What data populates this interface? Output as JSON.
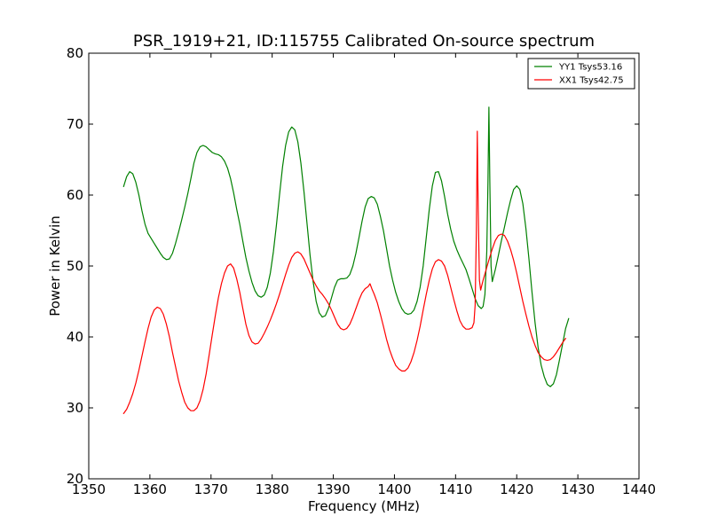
{
  "chart_data": {
    "type": "line",
    "title": "PSR_1919+21, ID:115755 Calibrated On-source spectrum",
    "xlabel": "Frequency (MHz)",
    "ylabel": "Power in Kelvin",
    "xlim": [
      1350,
      1440
    ],
    "ylim": [
      20,
      80
    ],
    "xticks": [
      1350,
      1360,
      1370,
      1380,
      1390,
      1400,
      1410,
      1420,
      1430,
      1440
    ],
    "yticks": [
      20,
      30,
      40,
      50,
      60,
      70,
      80
    ],
    "grid": false,
    "legend_position": "top-right",
    "series": [
      {
        "name": "YY1 Tsys53.16",
        "color": "#008000",
        "points": [
          [
            1355.7,
            61.2
          ],
          [
            1356.2,
            62.6
          ],
          [
            1356.7,
            63.3
          ],
          [
            1357.2,
            63.0
          ],
          [
            1357.7,
            61.8
          ],
          [
            1358.2,
            60.0
          ],
          [
            1358.7,
            57.8
          ],
          [
            1359.2,
            55.9
          ],
          [
            1359.7,
            54.6
          ],
          [
            1360.2,
            53.9
          ],
          [
            1360.7,
            53.2
          ],
          [
            1361.2,
            52.5
          ],
          [
            1361.7,
            51.8
          ],
          [
            1362.2,
            51.2
          ],
          [
            1362.7,
            50.9
          ],
          [
            1363.2,
            51.0
          ],
          [
            1363.7,
            51.8
          ],
          [
            1364.2,
            53.2
          ],
          [
            1364.7,
            54.8
          ],
          [
            1365.2,
            56.5
          ],
          [
            1365.7,
            58.3
          ],
          [
            1366.2,
            60.2
          ],
          [
            1366.7,
            62.3
          ],
          [
            1367.2,
            64.5
          ],
          [
            1367.7,
            66.0
          ],
          [
            1368.2,
            66.8
          ],
          [
            1368.7,
            67.0
          ],
          [
            1369.2,
            66.8
          ],
          [
            1369.7,
            66.4
          ],
          [
            1370.2,
            66.0
          ],
          [
            1370.7,
            65.8
          ],
          [
            1371.2,
            65.7
          ],
          [
            1371.7,
            65.4
          ],
          [
            1372.2,
            64.8
          ],
          [
            1372.7,
            63.8
          ],
          [
            1373.2,
            62.3
          ],
          [
            1373.7,
            60.3
          ],
          [
            1374.2,
            58.0
          ],
          [
            1374.7,
            55.9
          ],
          [
            1375.2,
            53.5
          ],
          [
            1375.7,
            51.2
          ],
          [
            1376.2,
            49.3
          ],
          [
            1376.7,
            47.7
          ],
          [
            1377.2,
            46.5
          ],
          [
            1377.7,
            45.8
          ],
          [
            1378.2,
            45.6
          ],
          [
            1378.7,
            45.9
          ],
          [
            1379.2,
            47.0
          ],
          [
            1379.7,
            49.0
          ],
          [
            1380.2,
            52.0
          ],
          [
            1380.7,
            55.8
          ],
          [
            1381.2,
            60.0
          ],
          [
            1381.7,
            64.0
          ],
          [
            1382.2,
            67.0
          ],
          [
            1382.7,
            68.9
          ],
          [
            1383.2,
            69.6
          ],
          [
            1383.7,
            69.2
          ],
          [
            1384.2,
            67.5
          ],
          [
            1384.7,
            64.5
          ],
          [
            1385.2,
            60.5
          ],
          [
            1385.7,
            56.0
          ],
          [
            1386.2,
            51.5
          ],
          [
            1386.7,
            47.8
          ],
          [
            1387.2,
            45.0
          ],
          [
            1387.7,
            43.4
          ],
          [
            1388.2,
            42.8
          ],
          [
            1388.7,
            43.0
          ],
          [
            1389.2,
            44.0
          ],
          [
            1389.7,
            45.5
          ],
          [
            1390.2,
            47.0
          ],
          [
            1390.7,
            48.0
          ],
          [
            1391.2,
            48.2
          ],
          [
            1391.7,
            48.2
          ],
          [
            1392.2,
            48.3
          ],
          [
            1392.7,
            48.8
          ],
          [
            1393.2,
            50.0
          ],
          [
            1393.7,
            51.8
          ],
          [
            1394.2,
            54.0
          ],
          [
            1394.7,
            56.3
          ],
          [
            1395.2,
            58.3
          ],
          [
            1395.7,
            59.5
          ],
          [
            1396.2,
            59.8
          ],
          [
            1396.7,
            59.6
          ],
          [
            1397.2,
            58.7
          ],
          [
            1397.7,
            57.0
          ],
          [
            1398.2,
            55.0
          ],
          [
            1398.7,
            52.5
          ],
          [
            1399.2,
            50.0
          ],
          [
            1399.7,
            48.0
          ],
          [
            1400.2,
            46.3
          ],
          [
            1400.7,
            45.0
          ],
          [
            1401.2,
            44.0
          ],
          [
            1401.7,
            43.4
          ],
          [
            1402.2,
            43.2
          ],
          [
            1402.7,
            43.3
          ],
          [
            1403.2,
            43.8
          ],
          [
            1403.7,
            45.0
          ],
          [
            1404.2,
            47.0
          ],
          [
            1404.7,
            50.0
          ],
          [
            1405.2,
            54.0
          ],
          [
            1405.7,
            58.0
          ],
          [
            1406.2,
            61.3
          ],
          [
            1406.7,
            63.2
          ],
          [
            1407.2,
            63.3
          ],
          [
            1407.7,
            62.0
          ],
          [
            1408.2,
            59.8
          ],
          [
            1408.7,
            57.3
          ],
          [
            1409.2,
            55.2
          ],
          [
            1409.7,
            53.5
          ],
          [
            1410.2,
            52.3
          ],
          [
            1410.7,
            51.3
          ],
          [
            1411.2,
            50.4
          ],
          [
            1411.7,
            49.5
          ],
          [
            1412.2,
            48.2
          ],
          [
            1412.7,
            46.8
          ],
          [
            1413.2,
            45.4
          ],
          [
            1413.7,
            44.4
          ],
          [
            1414.2,
            44.0
          ],
          [
            1414.5,
            44.3
          ],
          [
            1414.8,
            46.0
          ],
          [
            1415.1,
            52.0
          ],
          [
            1415.3,
            62.0
          ],
          [
            1415.45,
            72.4
          ],
          [
            1415.6,
            62.0
          ],
          [
            1415.8,
            50.0
          ],
          [
            1416.0,
            47.8
          ],
          [
            1416.5,
            49.5
          ],
          [
            1417.0,
            51.5
          ],
          [
            1417.5,
            53.6
          ],
          [
            1418.0,
            55.5
          ],
          [
            1418.5,
            57.5
          ],
          [
            1419.0,
            59.3
          ],
          [
            1419.5,
            60.8
          ],
          [
            1420.0,
            61.3
          ],
          [
            1420.5,
            60.8
          ],
          [
            1421.0,
            58.8
          ],
          [
            1421.5,
            55.3
          ],
          [
            1422.0,
            51.0
          ],
          [
            1422.5,
            46.3
          ],
          [
            1423.0,
            42.0
          ],
          [
            1423.5,
            38.5
          ],
          [
            1424.0,
            36.0
          ],
          [
            1424.5,
            34.4
          ],
          [
            1425.0,
            33.3
          ],
          [
            1425.5,
            33.0
          ],
          [
            1426.0,
            33.4
          ],
          [
            1426.5,
            34.7
          ],
          [
            1427.0,
            36.8
          ],
          [
            1427.5,
            39.0
          ],
          [
            1428.0,
            41.2
          ],
          [
            1428.5,
            42.6
          ]
        ]
      },
      {
        "name": "XX1 Tsys42.75",
        "color": "#ff0000",
        "points": [
          [
            1355.7,
            29.2
          ],
          [
            1356.2,
            29.8
          ],
          [
            1356.7,
            30.8
          ],
          [
            1357.2,
            32.0
          ],
          [
            1357.7,
            33.5
          ],
          [
            1358.2,
            35.3
          ],
          [
            1358.7,
            37.3
          ],
          [
            1359.2,
            39.3
          ],
          [
            1359.7,
            41.2
          ],
          [
            1360.2,
            42.8
          ],
          [
            1360.7,
            43.8
          ],
          [
            1361.2,
            44.2
          ],
          [
            1361.7,
            44.0
          ],
          [
            1362.2,
            43.2
          ],
          [
            1362.7,
            41.8
          ],
          [
            1363.2,
            40.0
          ],
          [
            1363.7,
            37.8
          ],
          [
            1364.2,
            35.8
          ],
          [
            1364.7,
            33.8
          ],
          [
            1365.2,
            32.2
          ],
          [
            1365.7,
            30.8
          ],
          [
            1366.2,
            30.0
          ],
          [
            1366.7,
            29.6
          ],
          [
            1367.2,
            29.6
          ],
          [
            1367.7,
            30.0
          ],
          [
            1368.2,
            31.0
          ],
          [
            1368.7,
            32.6
          ],
          [
            1369.2,
            34.8
          ],
          [
            1369.7,
            37.5
          ],
          [
            1370.2,
            40.3
          ],
          [
            1370.7,
            43.0
          ],
          [
            1371.2,
            45.5
          ],
          [
            1371.7,
            47.5
          ],
          [
            1372.2,
            49.0
          ],
          [
            1372.7,
            50.0
          ],
          [
            1373.2,
            50.3
          ],
          [
            1373.7,
            49.7
          ],
          [
            1374.2,
            48.2
          ],
          [
            1374.7,
            46.3
          ],
          [
            1375.2,
            44.0
          ],
          [
            1375.7,
            41.8
          ],
          [
            1376.2,
            40.2
          ],
          [
            1376.7,
            39.3
          ],
          [
            1377.2,
            39.0
          ],
          [
            1377.7,
            39.1
          ],
          [
            1378.2,
            39.7
          ],
          [
            1378.7,
            40.5
          ],
          [
            1379.2,
            41.4
          ],
          [
            1379.7,
            42.4
          ],
          [
            1380.2,
            43.5
          ],
          [
            1380.7,
            44.7
          ],
          [
            1381.2,
            46.0
          ],
          [
            1381.7,
            47.4
          ],
          [
            1382.2,
            48.8
          ],
          [
            1382.7,
            50.1
          ],
          [
            1383.2,
            51.2
          ],
          [
            1383.7,
            51.8
          ],
          [
            1384.2,
            52.0
          ],
          [
            1384.7,
            51.7
          ],
          [
            1385.2,
            51.0
          ],
          [
            1385.7,
            50.0
          ],
          [
            1386.2,
            49.0
          ],
          [
            1386.7,
            48.0
          ],
          [
            1387.2,
            47.2
          ],
          [
            1387.7,
            46.5
          ],
          [
            1388.2,
            46.0
          ],
          [
            1388.7,
            45.4
          ],
          [
            1389.2,
            44.7
          ],
          [
            1389.7,
            43.8
          ],
          [
            1390.2,
            42.8
          ],
          [
            1390.7,
            41.8
          ],
          [
            1391.2,
            41.2
          ],
          [
            1391.7,
            41.0
          ],
          [
            1392.2,
            41.2
          ],
          [
            1392.7,
            41.8
          ],
          [
            1393.2,
            42.8
          ],
          [
            1393.7,
            44.0
          ],
          [
            1394.2,
            45.2
          ],
          [
            1394.7,
            46.2
          ],
          [
            1395.2,
            46.8
          ],
          [
            1395.7,
            47.1
          ],
          [
            1396.0,
            47.5
          ],
          [
            1396.3,
            46.8
          ],
          [
            1396.7,
            46.0
          ],
          [
            1397.2,
            44.8
          ],
          [
            1397.7,
            43.2
          ],
          [
            1398.2,
            41.5
          ],
          [
            1398.7,
            39.7
          ],
          [
            1399.2,
            38.2
          ],
          [
            1399.7,
            37.0
          ],
          [
            1400.2,
            36.0
          ],
          [
            1400.7,
            35.5
          ],
          [
            1401.2,
            35.2
          ],
          [
            1401.7,
            35.2
          ],
          [
            1402.2,
            35.6
          ],
          [
            1402.7,
            36.5
          ],
          [
            1403.2,
            37.8
          ],
          [
            1403.7,
            39.5
          ],
          [
            1404.2,
            41.5
          ],
          [
            1404.7,
            43.8
          ],
          [
            1405.2,
            46.0
          ],
          [
            1405.7,
            48.0
          ],
          [
            1406.2,
            49.6
          ],
          [
            1406.7,
            50.6
          ],
          [
            1407.2,
            50.9
          ],
          [
            1407.7,
            50.7
          ],
          [
            1408.2,
            50.0
          ],
          [
            1408.7,
            48.7
          ],
          [
            1409.2,
            47.0
          ],
          [
            1409.7,
            45.3
          ],
          [
            1410.2,
            43.7
          ],
          [
            1410.7,
            42.3
          ],
          [
            1411.2,
            41.5
          ],
          [
            1411.7,
            41.1
          ],
          [
            1412.2,
            41.1
          ],
          [
            1412.7,
            41.3
          ],
          [
            1413.0,
            42.0
          ],
          [
            1413.2,
            44.5
          ],
          [
            1413.4,
            55.0
          ],
          [
            1413.55,
            69.0
          ],
          [
            1413.7,
            58.0
          ],
          [
            1413.9,
            48.0
          ],
          [
            1414.1,
            46.6
          ],
          [
            1414.5,
            48.0
          ],
          [
            1415.0,
            49.5
          ],
          [
            1415.5,
            51.0
          ],
          [
            1416.0,
            52.4
          ],
          [
            1416.5,
            53.6
          ],
          [
            1417.0,
            54.3
          ],
          [
            1417.5,
            54.5
          ],
          [
            1418.0,
            54.3
          ],
          [
            1418.5,
            53.5
          ],
          [
            1419.0,
            52.3
          ],
          [
            1419.5,
            50.8
          ],
          [
            1420.0,
            49.0
          ],
          [
            1420.5,
            47.0
          ],
          [
            1421.0,
            45.0
          ],
          [
            1421.5,
            43.2
          ],
          [
            1422.0,
            41.5
          ],
          [
            1422.5,
            40.0
          ],
          [
            1423.0,
            38.8
          ],
          [
            1423.5,
            37.8
          ],
          [
            1424.0,
            37.2
          ],
          [
            1424.5,
            36.8
          ],
          [
            1425.0,
            36.7
          ],
          [
            1425.5,
            36.8
          ],
          [
            1426.0,
            37.2
          ],
          [
            1426.5,
            37.8
          ],
          [
            1427.0,
            38.5
          ],
          [
            1427.5,
            39.2
          ],
          [
            1428.0,
            39.8
          ]
        ]
      }
    ]
  }
}
